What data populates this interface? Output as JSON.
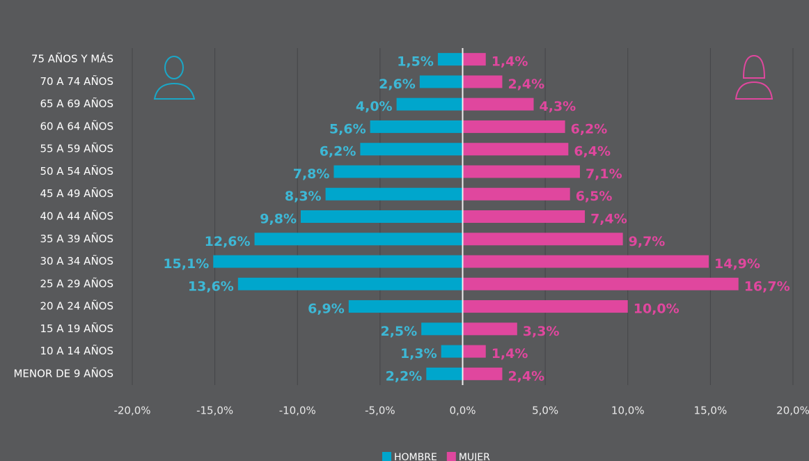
{
  "chart_data": {
    "type": "pyramid",
    "categories": [
      "75 AÑOS Y MÁS",
      "70 A 74 AÑOS",
      "65 A 69 AÑOS",
      "60 A 64 AÑOS",
      "55 A 59 AÑOS",
      "50 A 54 AÑOS",
      "45 A 49 AÑOS",
      "40 A 44 AÑOS",
      "35 A 39 AÑOS",
      "30 A 34 AÑOS",
      "25 A 29 AÑOS",
      "20 A 24 AÑOS",
      "15 A 19 AÑOS",
      "10 A 14 AÑOS",
      "MENOR DE 9 AÑOS"
    ],
    "series": [
      {
        "name": "HOMBRE",
        "color": "#00a6cc",
        "label_color": "#3db8d6",
        "values": [
          -1.5,
          -2.6,
          -4.0,
          -5.6,
          -6.2,
          -7.8,
          -8.3,
          -9.8,
          -12.6,
          -15.1,
          -13.6,
          -6.9,
          -2.5,
          -1.3,
          -2.2
        ],
        "value_labels": [
          "1,5%",
          "2,6%",
          "4,0%",
          "5,6%",
          "6,2%",
          "7,8%",
          "8,3%",
          "9,8%",
          "12,6%",
          "15,1%",
          "13,6%",
          "6,9%",
          "2,5%",
          "1,3%",
          "2,2%"
        ]
      },
      {
        "name": "MUJER",
        "color": "#e0479e",
        "label_color": "#e0479e",
        "values": [
          1.4,
          2.4,
          4.3,
          6.2,
          6.4,
          7.1,
          6.5,
          7.4,
          9.7,
          14.9,
          16.7,
          10.0,
          3.3,
          1.4,
          2.4
        ],
        "value_labels": [
          "1,4%",
          "2,4%",
          "4,3%",
          "6,2%",
          "6,4%",
          "7,1%",
          "6,5%",
          "7,4%",
          "9,7%",
          "14,9%",
          "16,7%",
          "10,0%",
          "3,3%",
          "1,4%",
          "2,4%"
        ]
      }
    ],
    "xlim": [
      -20,
      20
    ],
    "xticks": [
      {
        "value": -20,
        "label": "-20,0%"
      },
      {
        "value": -15,
        "label": "-15,0%"
      },
      {
        "value": -10,
        "label": "-10,0%"
      },
      {
        "value": -5,
        "label": "-5,0%"
      },
      {
        "value": 0,
        "label": "0,0%"
      },
      {
        "value": 5,
        "label": "5,0%"
      },
      {
        "value": 10,
        "label": "10,0%"
      },
      {
        "value": 15,
        "label": "15,0%"
      },
      {
        "value": 20,
        "label": "20,0%"
      }
    ],
    "grid": true
  }
}
